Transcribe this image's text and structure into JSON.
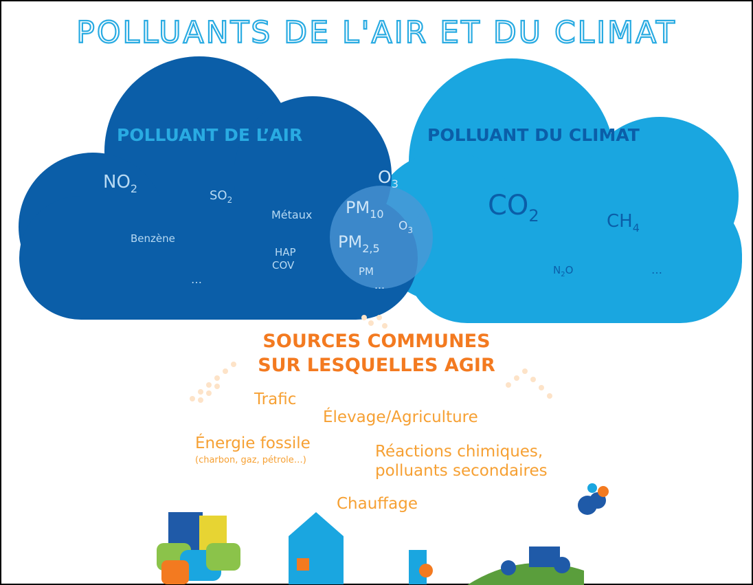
{
  "title": "POLLUANTS DE L'AIR ET DU CLIMAT",
  "air": {
    "label": "POLLUANT DE L’AIR",
    "items": [
      {
        "base": "NO",
        "sub": "2"
      },
      {
        "base": "SO",
        "sub": "2"
      },
      {
        "base": "Métaux"
      },
      {
        "base": "Benzène"
      },
      {
        "base": "HAP"
      },
      {
        "base": "COV"
      },
      {
        "base": "…"
      }
    ]
  },
  "common": {
    "items": [
      {
        "base": "O",
        "sub": "3"
      },
      {
        "base": "PM",
        "sub": "10"
      },
      {
        "base": "O",
        "sub": "3"
      },
      {
        "base": "PM",
        "sub": "2,5"
      },
      {
        "base": "PM"
      },
      {
        "base": "…"
      }
    ]
  },
  "climate": {
    "label": "POLLUANT DU CLIMAT",
    "items": [
      {
        "base": "CO",
        "sub": "2"
      },
      {
        "base": "CH",
        "sub": "4"
      },
      {
        "base": "N",
        "sub": "2",
        "tail": "O"
      },
      {
        "base": "…"
      }
    ]
  },
  "sources": {
    "title": [
      "SOURCES COMMUNES",
      "SUR LESQUELLES AGIR"
    ],
    "items": [
      {
        "lines": [
          "Trafic"
        ]
      },
      {
        "lines": [
          "Élevage/Agriculture"
        ]
      },
      {
        "lines": [
          "Énergie fossile"
        ],
        "note": "(charbon, gaz, pétrole…)"
      },
      {
        "lines": [
          "Réactions chimiques,",
          "polluants secondaires"
        ]
      },
      {
        "lines": [
          "Chauffage"
        ]
      }
    ]
  }
}
